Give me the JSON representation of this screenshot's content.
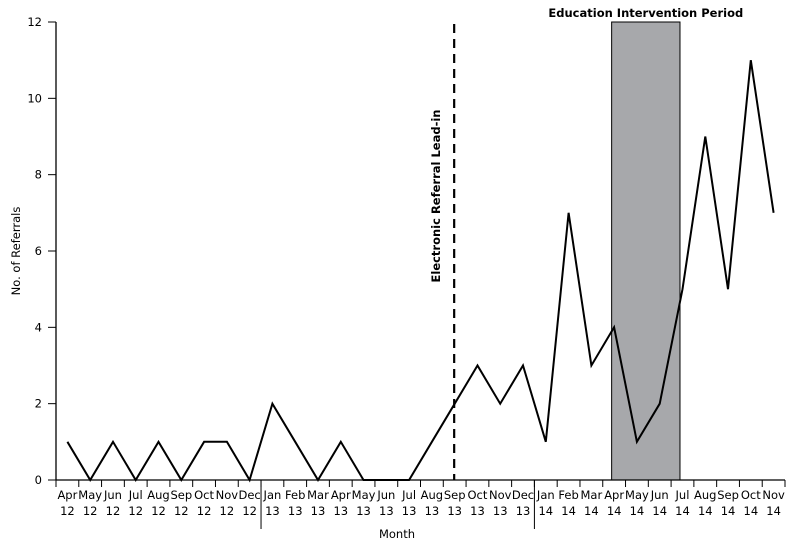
{
  "chart_data": {
    "type": "line",
    "title": "",
    "xlabel": "Month",
    "ylabel": "No. of Referrals",
    "ylim": [
      0,
      12
    ],
    "yticks": [
      0,
      2,
      4,
      6,
      8,
      10,
      12
    ],
    "grid": false,
    "legend": null,
    "categories": [
      {
        "month": "Apr",
        "year": "12"
      },
      {
        "month": "May",
        "year": "12"
      },
      {
        "month": "Jun",
        "year": "12"
      },
      {
        "month": "Jul",
        "year": "12"
      },
      {
        "month": "Aug",
        "year": "12"
      },
      {
        "month": "Sep",
        "year": "12"
      },
      {
        "month": "Oct",
        "year": "12"
      },
      {
        "month": "Nov",
        "year": "12"
      },
      {
        "month": "Dec",
        "year": "12"
      },
      {
        "month": "Jan",
        "year": "13"
      },
      {
        "month": "Feb",
        "year": "13"
      },
      {
        "month": "Mar",
        "year": "13"
      },
      {
        "month": "Apr",
        "year": "13"
      },
      {
        "month": "May",
        "year": "13"
      },
      {
        "month": "Jun",
        "year": "13"
      },
      {
        "month": "Jul",
        "year": "13"
      },
      {
        "month": "Aug",
        "year": "13"
      },
      {
        "month": "Sep",
        "year": "13"
      },
      {
        "month": "Oct",
        "year": "13"
      },
      {
        "month": "Nov",
        "year": "13"
      },
      {
        "month": "Dec",
        "year": "13"
      },
      {
        "month": "Jan",
        "year": "14"
      },
      {
        "month": "Feb",
        "year": "14"
      },
      {
        "month": "Mar",
        "year": "14"
      },
      {
        "month": "Apr",
        "year": "14"
      },
      {
        "month": "May",
        "year": "14"
      },
      {
        "month": "Jun",
        "year": "14"
      },
      {
        "month": "Jul",
        "year": "14"
      },
      {
        "month": "Aug",
        "year": "14"
      },
      {
        "month": "Sep",
        "year": "14"
      },
      {
        "month": "Oct",
        "year": "14"
      },
      {
        "month": "Nov",
        "year": "14"
      }
    ],
    "series": [
      {
        "name": "No. of Referrals",
        "color": "#000000",
        "values": [
          1,
          0,
          1,
          0,
          1,
          0,
          1,
          1,
          0,
          2,
          1,
          0,
          1,
          0,
          0,
          0,
          1,
          2,
          3,
          2,
          3,
          1,
          7,
          3,
          4,
          1,
          2,
          5,
          9,
          5,
          11,
          7
        ]
      }
    ],
    "annotations": [
      {
        "type": "vline",
        "style": "dashed",
        "at_index": 17,
        "label": "Electronic Referral Lead-in",
        "label_orientation": "vertical"
      },
      {
        "type": "shaded_region",
        "from_index": 24,
        "to_index": 27,
        "label": "Education Intervention Period",
        "fill": "#a7a8ab"
      }
    ],
    "year_separators_after_index": [
      8,
      20
    ]
  }
}
